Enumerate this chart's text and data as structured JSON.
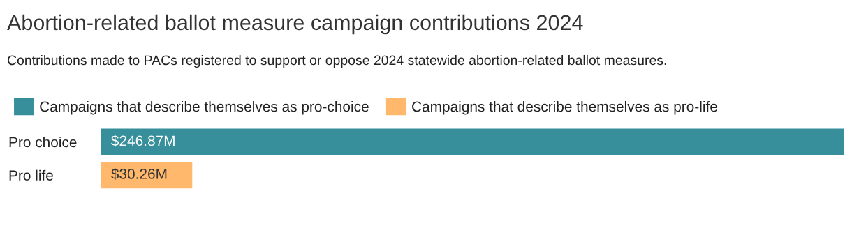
{
  "chart_data": {
    "type": "bar",
    "orientation": "horizontal",
    "title": "Abortion-related ballot measure campaign contributions 2024",
    "subtitle": "Contributions made to PACs registered to support or oppose 2024 statewide abortion-related ballot measures.",
    "categories": [
      "Pro choice",
      "Pro life"
    ],
    "series": [
      {
        "name": "Campaigns that describe themselves as pro-choice",
        "color": "#368f9b",
        "values": [
          246.87,
          null
        ],
        "value_labels": [
          "$246.87M",
          null
        ]
      },
      {
        "name": "Campaigns that describe themselves as pro-life",
        "color": "#ffb86c",
        "values": [
          null,
          30.26
        ],
        "value_labels": [
          null,
          "$30.26M"
        ]
      }
    ],
    "legend": "top",
    "grid": false,
    "tick_labels": "y"
  }
}
